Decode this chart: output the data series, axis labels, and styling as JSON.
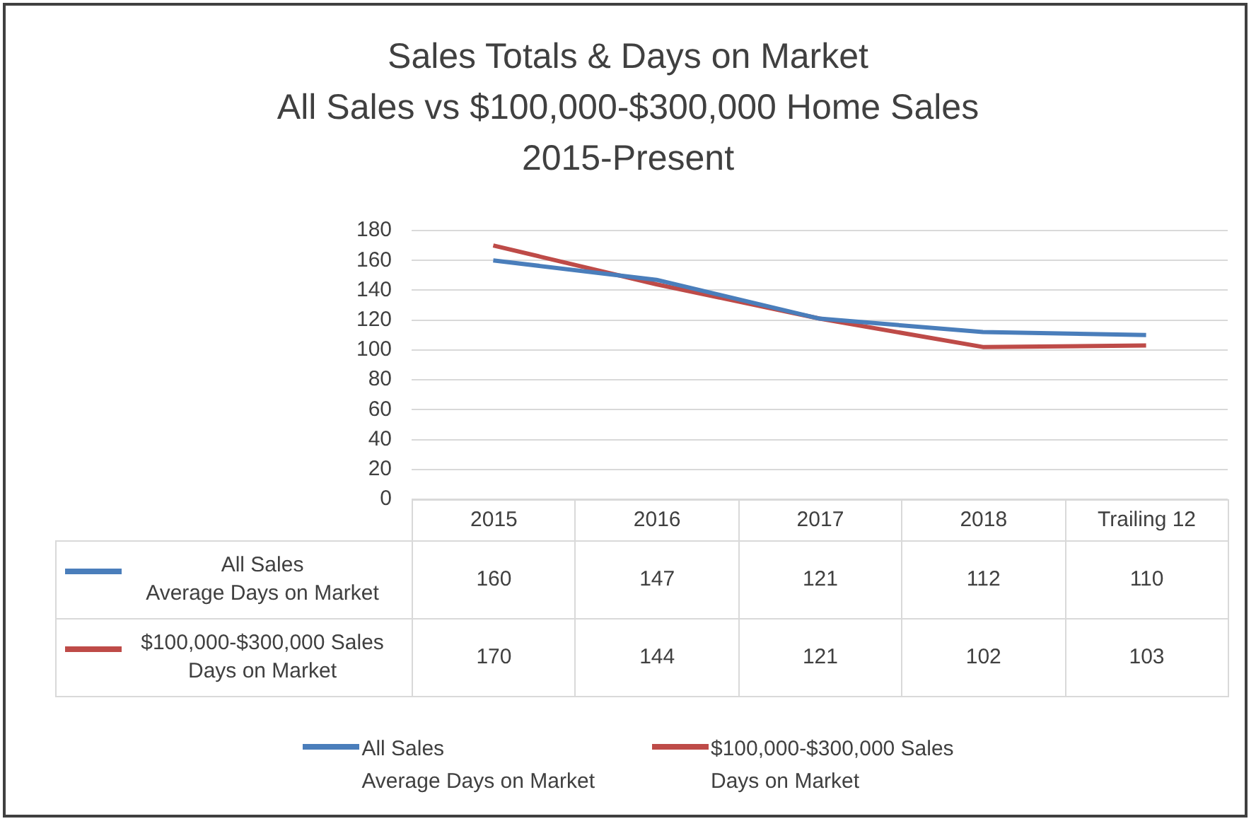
{
  "chart_data": {
    "type": "line",
    "title": "Sales Totals & Days on Market",
    "subtitle": "All Sales vs $100,000-$300,000 Home Sales\n2015-Present",
    "categories": [
      "2015",
      "2016",
      "2017",
      "2018",
      "Trailing 12"
    ],
    "series": [
      {
        "name": "All Sales\nAverage Days on Market",
        "color": "#4a7ebb",
        "values": [
          160,
          147,
          121,
          112,
          110
        ]
      },
      {
        "name": "$100,000-$300,000 Sales\nDays on Market",
        "color": "#be4b48",
        "values": [
          170,
          144,
          121,
          102,
          103
        ]
      }
    ],
    "ylim": [
      0,
      180
    ],
    "yticks": [
      0,
      20,
      40,
      60,
      80,
      100,
      120,
      140,
      160,
      180
    ],
    "grid": "y",
    "legend": "bottom",
    "marker": "none",
    "line_style": "solid",
    "data_labels": true
  }
}
